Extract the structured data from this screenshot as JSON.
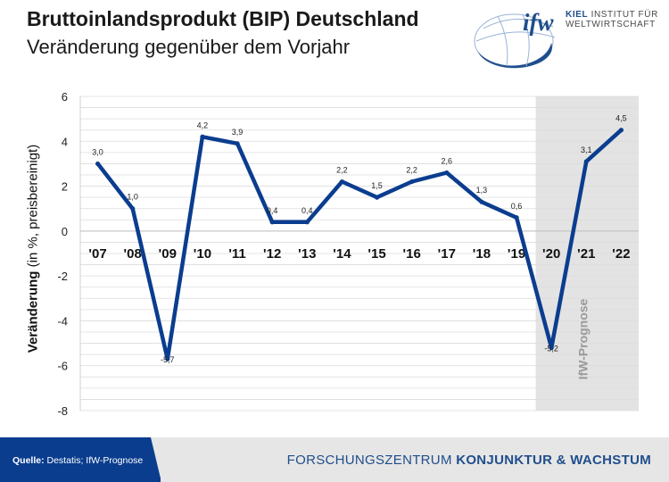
{
  "header": {
    "title": "Bruttoinlandsprodukt (BIP)  Deutschland",
    "subtitle": "Veränderung gegenüber dem Vorjahr"
  },
  "logo": {
    "mark": "ifw",
    "line1": "KIEL INSTITUT FÜR",
    "line2": "WELTWIRTSCHAFT",
    "kiel": "KIEL"
  },
  "footer": {
    "source_label": "Quelle:",
    "source_text": " Destatis; IfW-Prognose",
    "center_prefix": "FORSCHUNGSZENTRUM ",
    "center_bold": "KONJUNKTUR & WACHSTUM"
  },
  "colors": {
    "line": "#0b3d8f",
    "forecast_shade": "#e3e3e3",
    "grid": "#dcdcdc",
    "footer_blue": "#0b3d8f"
  },
  "chart_data": {
    "type": "line",
    "ylabel_bold": "Veränderung",
    "ylabel_rest": " (in %, preisbereinigt)",
    "categories": [
      "'07",
      "'08",
      "'09",
      "'10",
      "'11",
      "'12",
      "'13",
      "'14",
      "'15",
      "'16",
      "'17",
      "'18",
      "'19",
      "'20",
      "'21",
      "'22"
    ],
    "series": [
      {
        "values": [
          3.0,
          1.0,
          -5.7,
          4.2,
          3.9,
          0.4,
          0.4,
          2.2,
          1.5,
          2.2,
          2.6,
          1.3,
          0.6,
          -5.2,
          3.1,
          4.5
        ]
      }
    ],
    "data_labels": [
      "3,0",
      "1,0",
      "-5,7",
      "4,2",
      "3,9",
      "0,4",
      "0,4",
      "2,2",
      "1,5",
      "2,2",
      "2,6",
      "1,3",
      "0,6",
      "-5,2",
      "3,1",
      "4,5"
    ],
    "ylim": [
      -8,
      6
    ],
    "yticks": [
      6,
      4,
      2,
      0,
      -2,
      -4,
      -6,
      -8
    ],
    "ytick_labels": [
      "6",
      "4",
      "2",
      "0",
      "-2",
      "-4",
      "-6",
      "-8"
    ],
    "grid": true,
    "forecast": {
      "label": "IfW-Prognose",
      "from_category": "'20",
      "to_category": "'22"
    }
  }
}
